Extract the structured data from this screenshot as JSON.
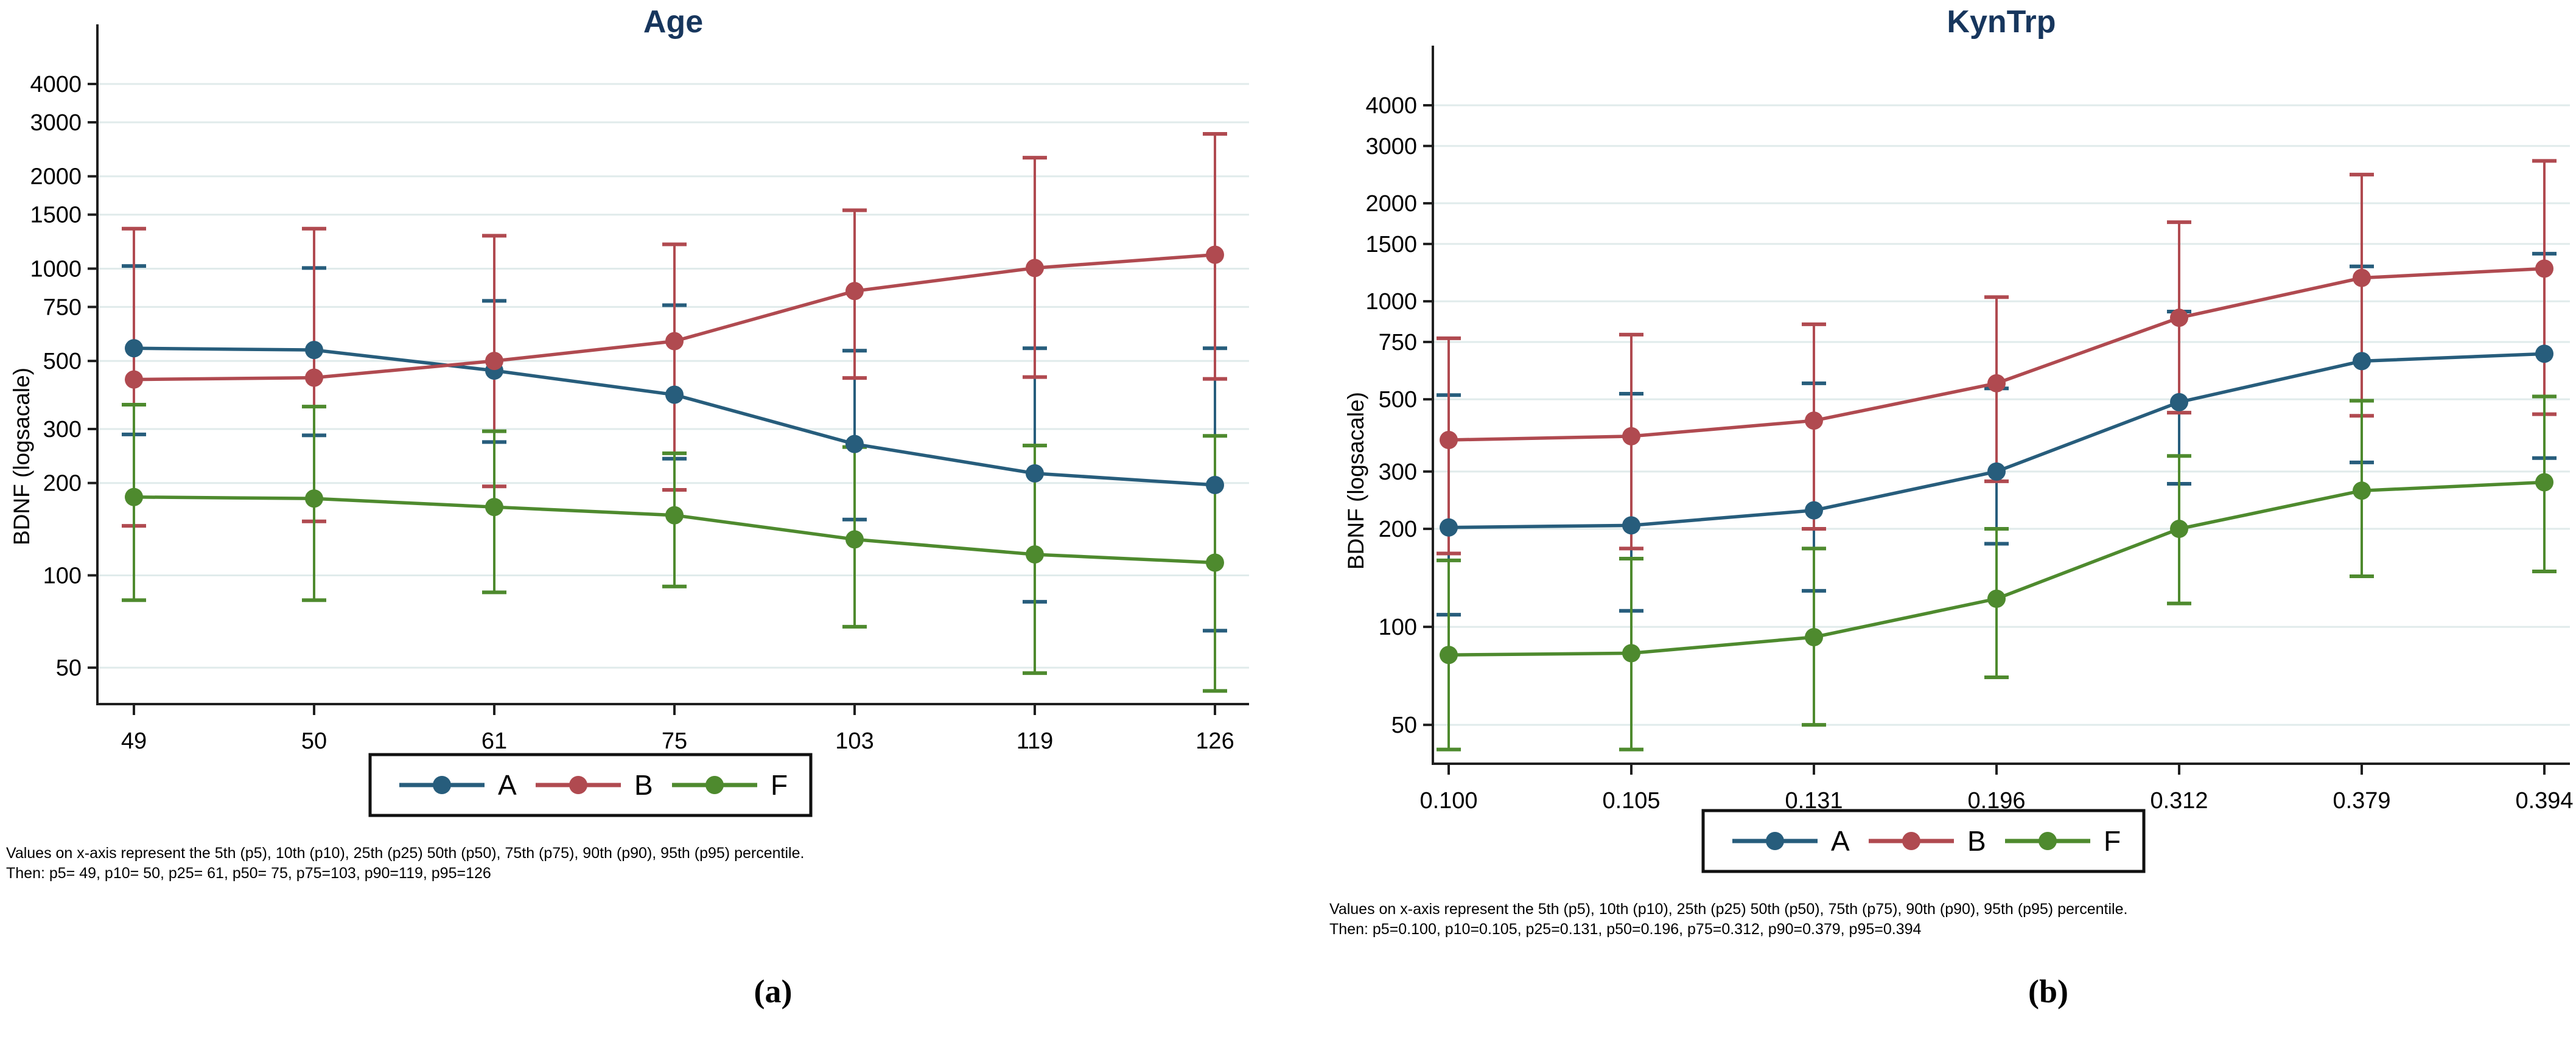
{
  "figure": {
    "panel_labels": [
      "(a)",
      "(b)"
    ],
    "background": "#ffffff",
    "accent_title_color": "#17365d"
  },
  "chart_data": [
    {
      "type": "line",
      "title": "Age",
      "ylabel": "BDNF (logsacale)",
      "xlabel": "",
      "yscale": "log",
      "grid": true,
      "grid_color": "#e0ebeb",
      "legend_position": "below-center-boxed",
      "legend": [
        "A",
        "B",
        "F"
      ],
      "yticks": [
        4000,
        3000,
        2000,
        1500,
        1000,
        750,
        500,
        300,
        200,
        100,
        50
      ],
      "ylim": [
        38,
        6300
      ],
      "categories": [
        "49",
        "50",
        "61",
        "75",
        "103",
        "119",
        "126"
      ],
      "series": [
        {
          "name": "A",
          "color": "#275d7c",
          "values": [
            550,
            543,
            465,
            388,
            268,
            215,
            197
          ],
          "lo": [
            288,
            286,
            272,
            240,
            152,
            82,
            66
          ],
          "hi": [
            1020,
            1005,
            785,
            760,
            540,
            550,
            550
          ]
        },
        {
          "name": "B",
          "color": "#b04a50",
          "values": [
            435,
            441,
            500,
            580,
            845,
            1005,
            1110
          ],
          "lo": [
            145,
            150,
            195,
            190,
            440,
            443,
            437
          ],
          "hi": [
            1350,
            1350,
            1280,
            1200,
            1550,
            2300,
            2750
          ]
        },
        {
          "name": "F",
          "color": "#4e8a2e",
          "values": [
            180,
            178,
            167,
            157,
            131,
            117,
            110
          ],
          "lo": [
            83,
            83,
            88,
            92,
            68,
            48,
            42
          ],
          "hi": [
            360,
            355,
            295,
            250,
            262,
            265,
            285
          ]
        }
      ],
      "footnotes": [
        "Values on x-axis represent the 5th (p5), 10th (p10), 25th (p25) 50th (p50), 75th (p75), 90th (p90), 95th (p95) percentile.",
        "Then: p5= 49, p10= 50, p25= 61, p50= 75, p75=103, p90=119, p95=126"
      ]
    },
    {
      "type": "line",
      "title": "KynTrp",
      "ylabel": "BDNF (logsacale)",
      "xlabel": "",
      "yscale": "log",
      "grid": true,
      "grid_color": "#e0ebeb",
      "legend_position": "below-center-boxed",
      "legend": [
        "A",
        "B",
        "F"
      ],
      "yticks": [
        4000,
        3000,
        2000,
        1500,
        1000,
        750,
        500,
        300,
        200,
        100,
        50
      ],
      "ylim": [
        38,
        6300
      ],
      "categories": [
        "0.100",
        "0.105",
        "0.131",
        "0.196",
        "0.312",
        "0.379",
        "0.394"
      ],
      "series": [
        {
          "name": "A",
          "color": "#275d7c",
          "values": [
            202,
            205,
            228,
            300,
            490,
            655,
            690
          ],
          "lo": [
            109,
            112,
            129,
            180,
            275,
            320,
            330
          ],
          "hi": [
            515,
            520,
            560,
            540,
            930,
            1280,
            1400
          ]
        },
        {
          "name": "B",
          "color": "#b04a50",
          "values": [
            375,
            385,
            430,
            560,
            890,
            1180,
            1260
          ],
          "lo": [
            168,
            174,
            200,
            280,
            455,
            445,
            450
          ],
          "hi": [
            770,
            790,
            850,
            1030,
            1750,
            2450,
            2700
          ]
        },
        {
          "name": "F",
          "color": "#4e8a2e",
          "values": [
            82,
            83,
            93,
            122,
            200,
            262,
            278
          ],
          "lo": [
            42,
            42,
            50,
            70,
            118,
            143,
            148
          ],
          "hi": [
            160,
            162,
            174,
            200,
            335,
            495,
            510
          ]
        }
      ],
      "footnotes": [
        "Values on x-axis represent the 5th (p5), 10th (p10), 25th (p25) 50th (p50), 75th (p75), 90th (p90), 95th (p95) percentile.",
        "Then: p5=0.100, p10=0.105, p25=0.131, p50=0.196, p75=0.312, p90=0.379, p95=0.394"
      ]
    }
  ]
}
